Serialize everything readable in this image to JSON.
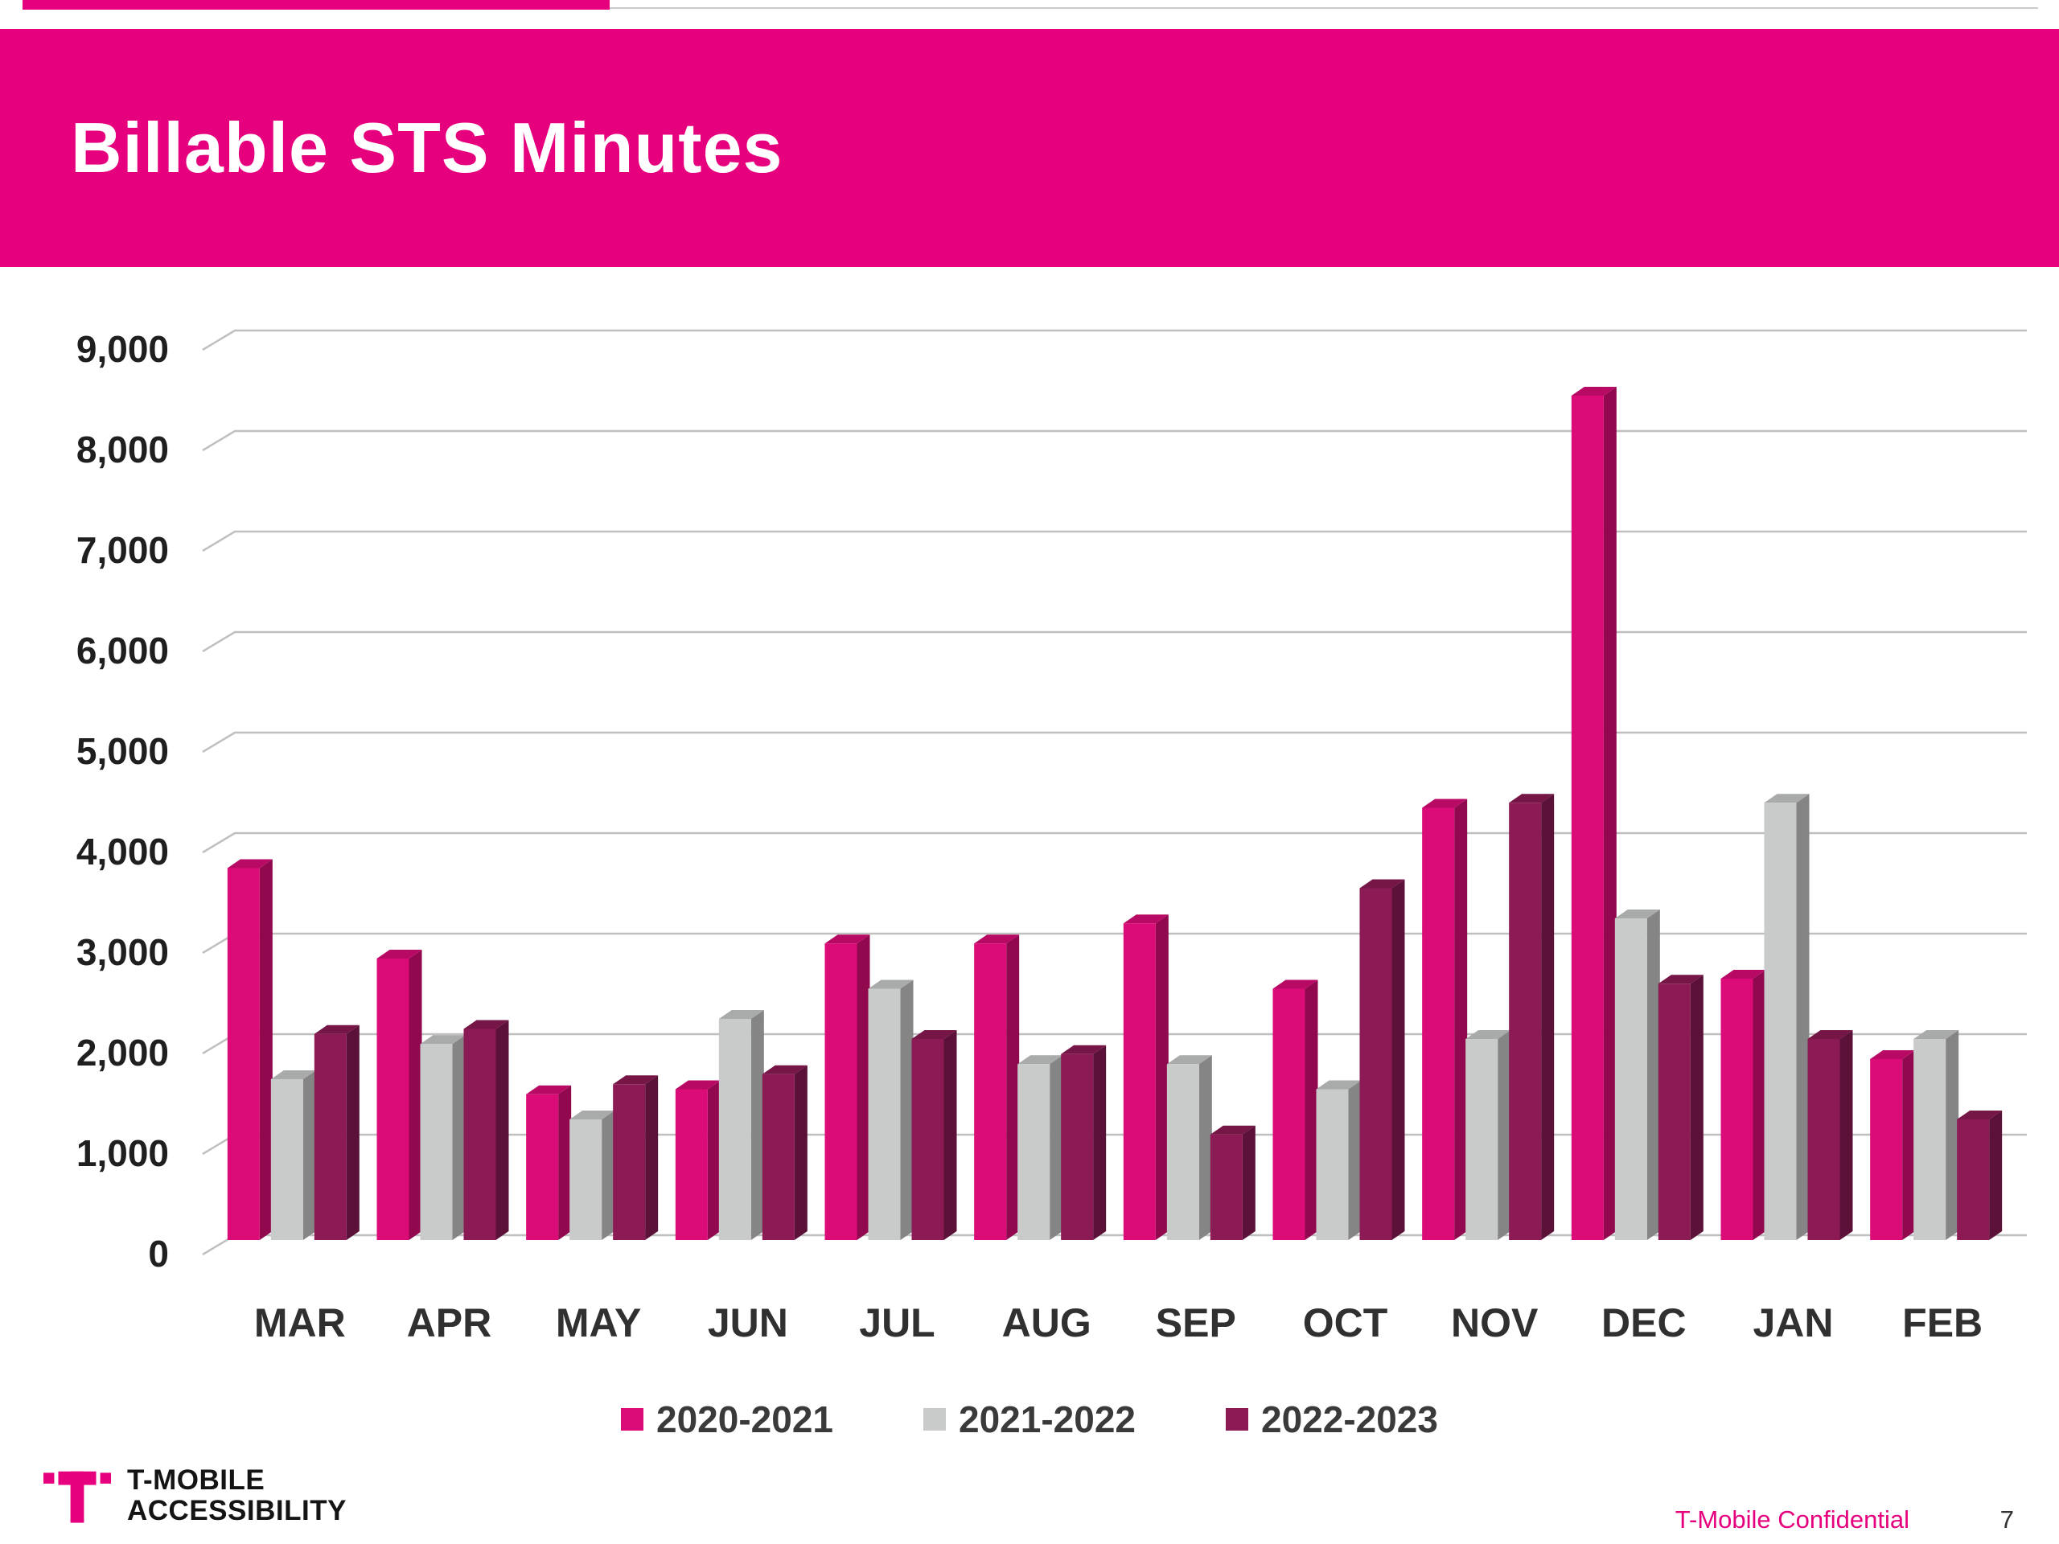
{
  "title": "Billable STS Minutes",
  "colors": {
    "header": "#E6007E",
    "series1": "#DB0C77",
    "series2": "#C9CACA",
    "series3": "#8C1A55",
    "gridline": "#BFBFBF",
    "axis_text": "#303030"
  },
  "chart_data": {
    "type": "bar",
    "style": "3d-clustered",
    "title": "Billable STS Minutes",
    "xlabel": "",
    "ylabel": "",
    "ylim": [
      0,
      9000
    ],
    "ytick_step": 1000,
    "grid": true,
    "legend_position": "bottom",
    "categories": [
      "MAR",
      "APR",
      "MAY",
      "JUN",
      "JUL",
      "AUG",
      "SEP",
      "OCT",
      "NOV",
      "DEC",
      "JAN",
      "FEB"
    ],
    "series": [
      {
        "name": "2020-2021",
        "color": "#DB0C77",
        "values": [
          3700,
          2800,
          1450,
          1500,
          2950,
          2950,
          3150,
          2500,
          4300,
          8400,
          2600,
          1800
        ]
      },
      {
        "name": "2021-2022",
        "color": "#C9CACA",
        "values": [
          1600,
          1950,
          1200,
          2200,
          2500,
          1750,
          1750,
          1500,
          2000,
          3200,
          4350,
          2000
        ]
      },
      {
        "name": "2022-2023",
        "color": "#8C1A55",
        "values": [
          2050,
          2100,
          1550,
          1650,
          2000,
          1850,
          1050,
          3500,
          4350,
          2550,
          2000,
          1200
        ]
      }
    ]
  },
  "footer": {
    "logo_line1": "T-MOBILE",
    "logo_line2": "ACCESSIBILITY",
    "confidential": "T-Mobile Confidential",
    "page_number": "7"
  }
}
